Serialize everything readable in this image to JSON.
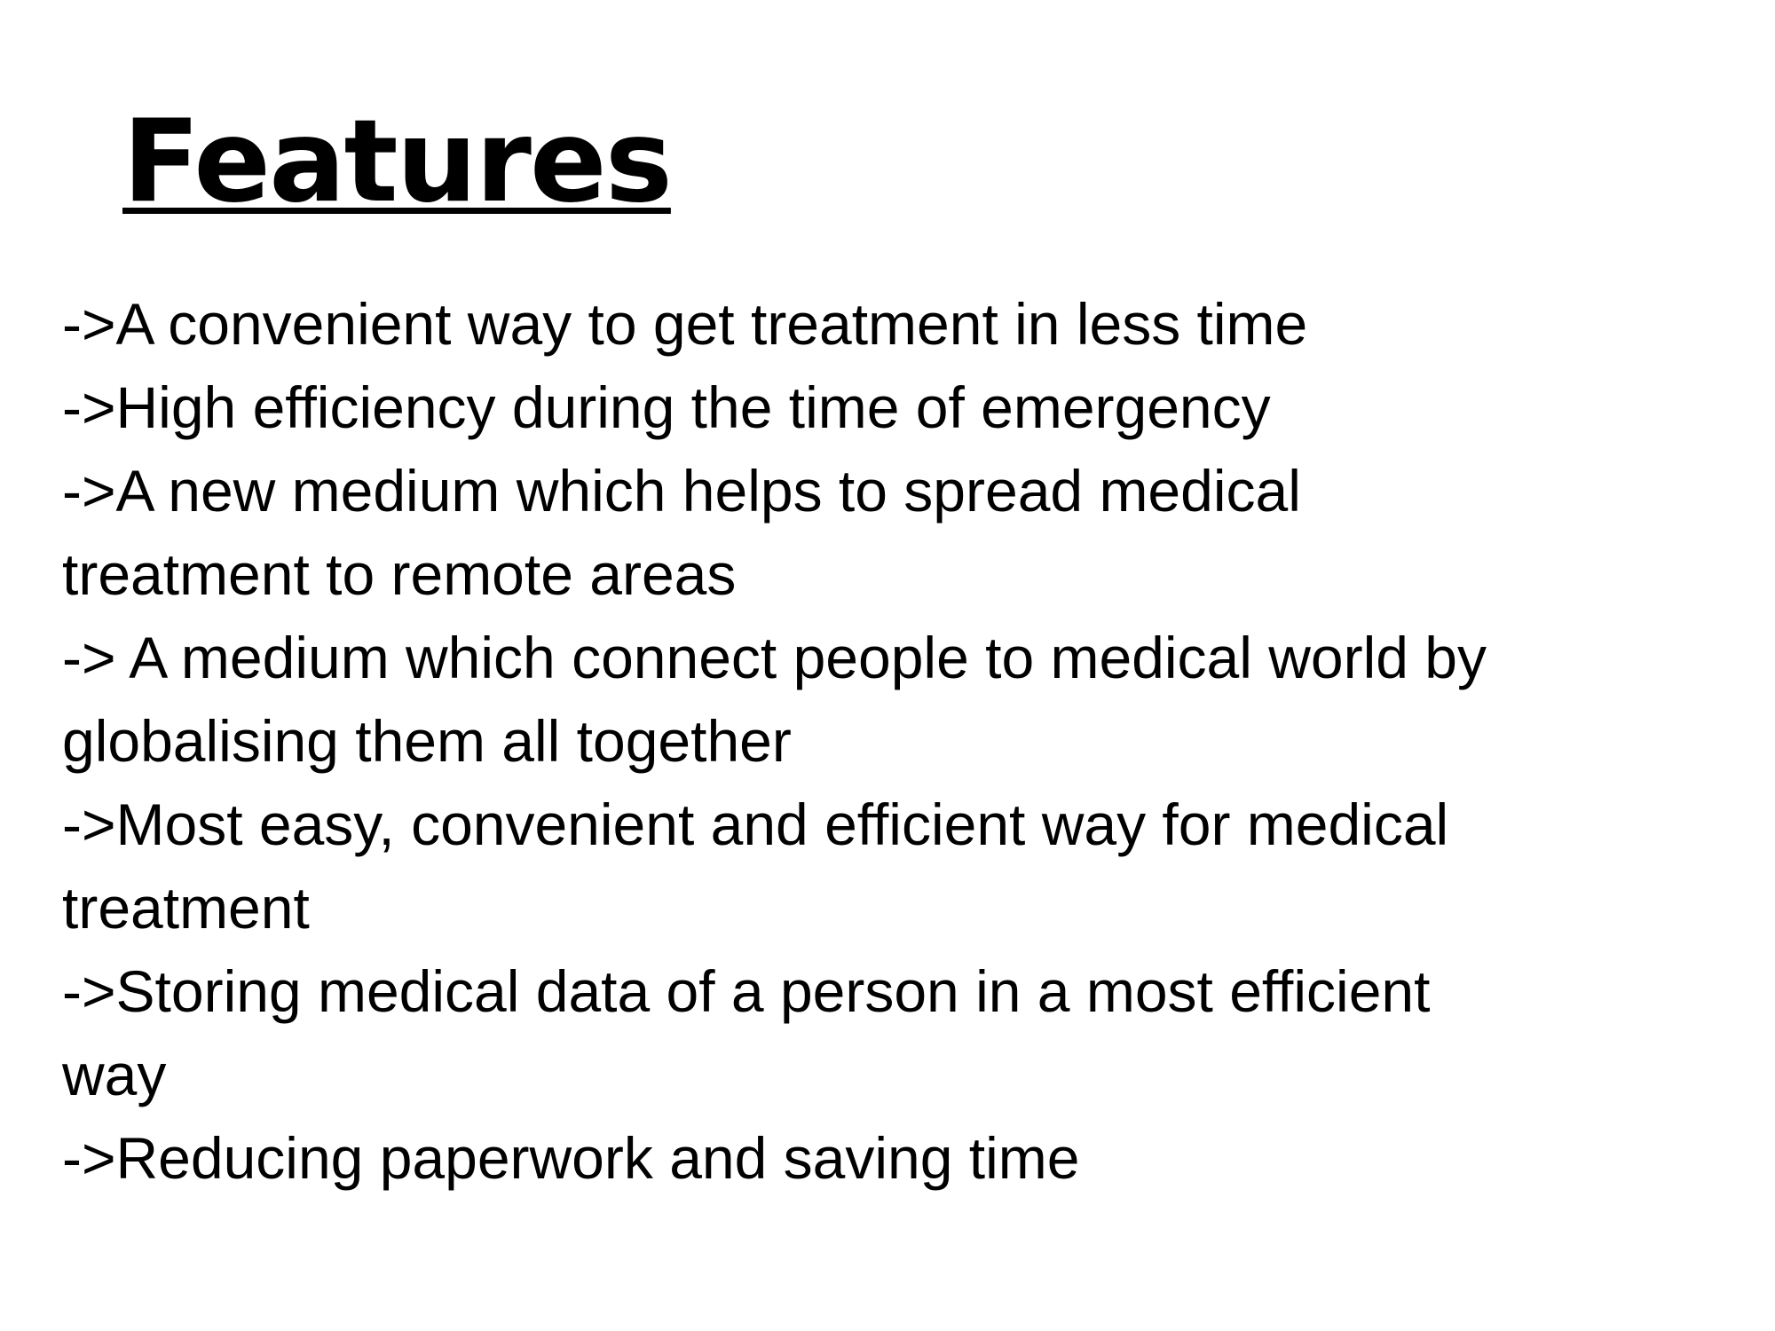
{
  "slide": {
    "title": "Features",
    "features": [
      [
        "->A convenient way to get treatment in less time"
      ],
      [
        "->High efficiency during the time of emergency"
      ],
      [
        "->A new medium which helps to spread medical",
        "treatment to remote areas"
      ],
      [
        "-> A medium which connect people to medical world by",
        "globalising them all together"
      ],
      [
        "->Most easy, convenient and efficient way for medical",
        "treatment"
      ],
      [
        "->Storing medical data of a person in a most efficient",
        "way"
      ],
      [
        "->Reducing paperwork and saving time"
      ]
    ]
  },
  "colors": {
    "background": "#ffffff",
    "text": "#000000"
  }
}
